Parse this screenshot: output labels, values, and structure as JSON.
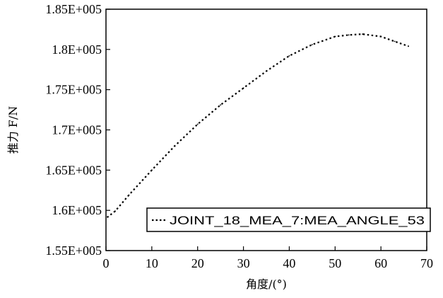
{
  "chart_data": {
    "type": "line",
    "xlabel": "角度/(°)",
    "ylabel": "推力 F/N",
    "xlim": [
      0,
      70
    ],
    "ylim": [
      155000,
      185000
    ],
    "x_ticks": [
      0,
      10,
      20,
      30,
      40,
      50,
      60,
      70
    ],
    "x_tick_labels": [
      "0",
      "10",
      "20",
      "30",
      "40",
      "50",
      "60",
      "70"
    ],
    "y_ticks": [
      155000,
      160000,
      165000,
      170000,
      175000,
      180000,
      185000
    ],
    "y_tick_labels": [
      "1.55E+005",
      "1.6E+005",
      "1.65E+005",
      "1.7E+005",
      "1.75E+005",
      "1.8E+005",
      "1.85E+005"
    ],
    "grid": false,
    "legend_position": "bottom-right",
    "series": [
      {
        "name": "JOINT_18_MEA_7:MEA_ANGLE_53",
        "line_style": "dotted",
        "color": "#000000",
        "x": [
          -0.5,
          2,
          5,
          10,
          15,
          20,
          25,
          30,
          35,
          40,
          45,
          50,
          53,
          56,
          60,
          63,
          66
        ],
        "y": [
          158800,
          159900,
          161900,
          165000,
          168000,
          170700,
          173100,
          175200,
          177300,
          179200,
          180600,
          181600,
          181800,
          181900,
          181600,
          181000,
          180400
        ]
      }
    ]
  }
}
